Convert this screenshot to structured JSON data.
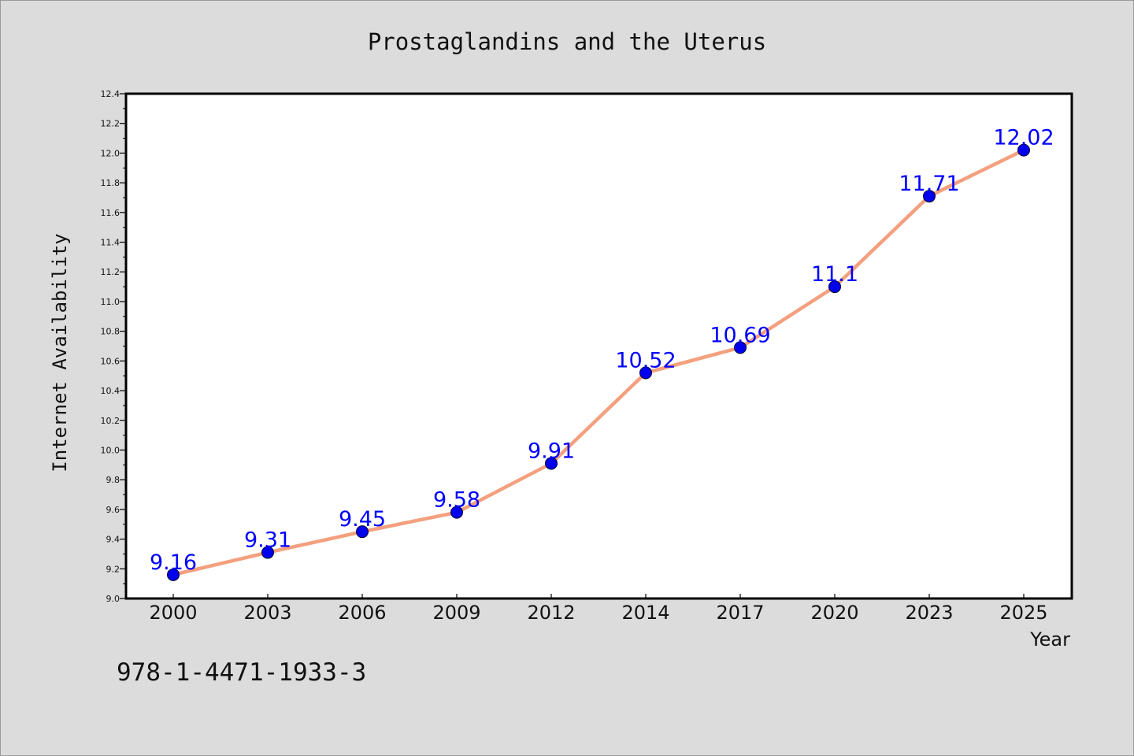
{
  "chart_data": {
    "type": "line",
    "title": "Prostaglandins and the Uterus",
    "xlabel": "Year",
    "ylabel": "Internet Availability",
    "categories": [
      "2000",
      "2003",
      "2006",
      "2009",
      "2012",
      "2014",
      "2017",
      "2020",
      "2023",
      "2025"
    ],
    "series": [
      {
        "values": [
          9.16,
          9.31,
          9.45,
          9.58,
          9.91,
          10.52,
          10.69,
          11.1,
          11.71,
          12.02
        ],
        "labels": [
          "9.16",
          "9.31",
          "9.45",
          "9.58",
          "9.91",
          "10.52",
          "10.69",
          "11.1",
          "11.71",
          "12.02"
        ],
        "line_color": "#f4a07e",
        "marker_color": "#0000ee"
      }
    ],
    "ylim": [
      9.0,
      12.4
    ],
    "yticks": [
      "9.0",
      "9.2",
      "9.4",
      "9.6",
      "9.8",
      "10.0",
      "10.2",
      "10.4",
      "10.6",
      "10.8",
      "11.0",
      "11.2",
      "11.4",
      "11.6",
      "11.8",
      "12.0",
      "12.2",
      "12.4"
    ],
    "grid": false,
    "data_label_color": "#0000ff"
  },
  "footer": {
    "isbn": "978-1-4471-1933-3"
  }
}
